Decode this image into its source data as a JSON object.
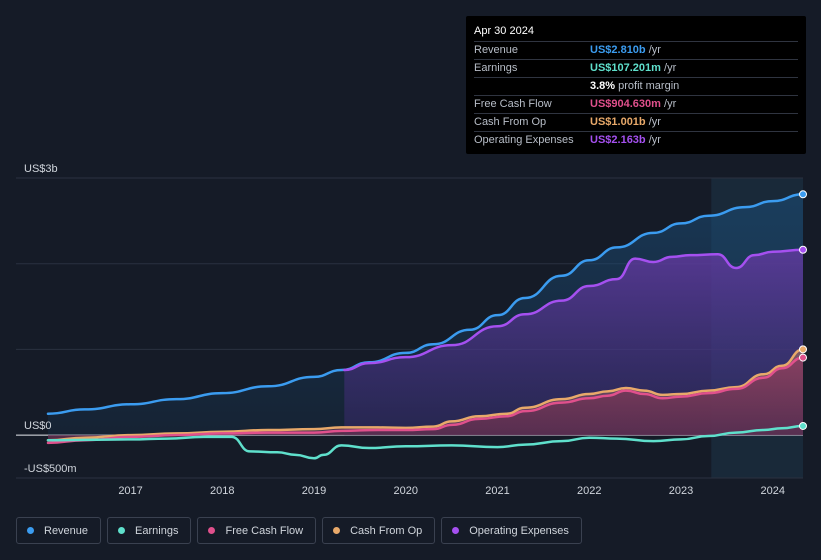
{
  "tooltip": {
    "date": "Apr 30 2024",
    "rows": [
      {
        "label": "Revenue",
        "value": "US$2.810b",
        "unit": "/yr",
        "color": "#3b9cf0"
      },
      {
        "label": "Earnings",
        "value": "US$107.201m",
        "unit": "/yr",
        "color": "#5fe0cc"
      },
      {
        "label": "",
        "value": "3.8%",
        "unit": "profit margin",
        "color": "#ffffff"
      },
      {
        "label": "Free Cash Flow",
        "value": "US$904.630m",
        "unit": "/yr",
        "color": "#e0508c"
      },
      {
        "label": "Cash From Op",
        "value": "US$1.001b",
        "unit": "/yr",
        "color": "#e8a96a"
      },
      {
        "label": "Operating Expenses",
        "value": "US$2.163b",
        "unit": "/yr",
        "color": "#a550f0"
      }
    ]
  },
  "legend": [
    {
      "label": "Revenue",
      "color": "#3b9cf0"
    },
    {
      "label": "Earnings",
      "color": "#5fe0cc"
    },
    {
      "label": "Free Cash Flow",
      "color": "#e0508c"
    },
    {
      "label": "Cash From Op",
      "color": "#e8a96a"
    },
    {
      "label": "Operating Expenses",
      "color": "#a550f0"
    }
  ],
  "chart_data": {
    "type": "area",
    "title": "",
    "ylabel": "",
    "xlabel": "",
    "ylim": [
      -500,
      3000
    ],
    "y_tick_labels": [
      {
        "value": 3000,
        "label": "US$3b"
      },
      {
        "value": 0,
        "label": "US$0"
      },
      {
        "value": -500,
        "label": "-US$500m"
      }
    ],
    "x_ticks": [
      {
        "value": 2017,
        "label": "2017"
      },
      {
        "value": 2018,
        "label": "2018"
      },
      {
        "value": 2019,
        "label": "2019"
      },
      {
        "value": 2020,
        "label": "2020"
      },
      {
        "value": 2021,
        "label": "2021"
      },
      {
        "value": 2022,
        "label": "2022"
      },
      {
        "value": 2023,
        "label": "2023"
      },
      {
        "value": 2024,
        "label": "2024"
      }
    ],
    "x_range": [
      2016.1,
      2024.33
    ],
    "highlight_start": 2023.33,
    "series": [
      {
        "name": "Revenue",
        "color": "#3b9cf0",
        "fill": true,
        "points": [
          [
            2016.1,
            250
          ],
          [
            2016.5,
            300
          ],
          [
            2017,
            360
          ],
          [
            2017.5,
            420
          ],
          [
            2018,
            490
          ],
          [
            2018.5,
            570
          ],
          [
            2019,
            680
          ],
          [
            2019.3,
            760
          ],
          [
            2019.6,
            850
          ],
          [
            2020,
            960
          ],
          [
            2020.3,
            1060
          ],
          [
            2020.7,
            1230
          ],
          [
            2021,
            1400
          ],
          [
            2021.3,
            1600
          ],
          [
            2021.7,
            1860
          ],
          [
            2022,
            2040
          ],
          [
            2022.3,
            2190
          ],
          [
            2022.7,
            2360
          ],
          [
            2023,
            2470
          ],
          [
            2023.3,
            2560
          ],
          [
            2023.7,
            2660
          ],
          [
            2024,
            2730
          ],
          [
            2024.33,
            2810
          ]
        ]
      },
      {
        "name": "Operating Expenses",
        "color": "#a550f0",
        "fill": true,
        "points": [
          [
            2019.33,
            760
          ],
          [
            2019.6,
            840
          ],
          [
            2020,
            910
          ],
          [
            2020.5,
            1050
          ],
          [
            2021,
            1270
          ],
          [
            2021.3,
            1410
          ],
          [
            2021.7,
            1570
          ],
          [
            2022,
            1740
          ],
          [
            2022.3,
            1820
          ],
          [
            2022.5,
            2060
          ],
          [
            2022.7,
            2020
          ],
          [
            2022.9,
            2080
          ],
          [
            2023.1,
            2100
          ],
          [
            2023.4,
            2110
          ],
          [
            2023.6,
            1950
          ],
          [
            2023.8,
            2100
          ],
          [
            2024,
            2140
          ],
          [
            2024.33,
            2163
          ]
        ]
      },
      {
        "name": "Cash From Op",
        "color": "#e8a96a",
        "fill": true,
        "points": [
          [
            2016.1,
            -60
          ],
          [
            2016.5,
            -30
          ],
          [
            2017,
            0
          ],
          [
            2017.5,
            20
          ],
          [
            2018,
            40
          ],
          [
            2018.5,
            60
          ],
          [
            2019,
            70
          ],
          [
            2019.3,
            90
          ],
          [
            2019.7,
            90
          ],
          [
            2020,
            85
          ],
          [
            2020.3,
            100
          ],
          [
            2020.5,
            160
          ],
          [
            2020.8,
            220
          ],
          [
            2021.1,
            250
          ],
          [
            2021.3,
            320
          ],
          [
            2021.7,
            420
          ],
          [
            2022,
            480
          ],
          [
            2022.2,
            510
          ],
          [
            2022.4,
            550
          ],
          [
            2022.6,
            520
          ],
          [
            2022.8,
            470
          ],
          [
            2023,
            480
          ],
          [
            2023.3,
            520
          ],
          [
            2023.6,
            560
          ],
          [
            2023.9,
            710
          ],
          [
            2024.1,
            810
          ],
          [
            2024.33,
            1001
          ]
        ]
      },
      {
        "name": "Free Cash Flow",
        "color": "#e0508c",
        "fill": true,
        "points": [
          [
            2016.1,
            -90
          ],
          [
            2016.5,
            -60
          ],
          [
            2017,
            -20
          ],
          [
            2017.5,
            0
          ],
          [
            2018,
            20
          ],
          [
            2018.5,
            30
          ],
          [
            2019,
            30
          ],
          [
            2019.3,
            50
          ],
          [
            2019.7,
            60
          ],
          [
            2020,
            60
          ],
          [
            2020.3,
            70
          ],
          [
            2020.5,
            120
          ],
          [
            2020.8,
            190
          ],
          [
            2021.1,
            220
          ],
          [
            2021.3,
            280
          ],
          [
            2021.7,
            380
          ],
          [
            2022,
            430
          ],
          [
            2022.2,
            460
          ],
          [
            2022.4,
            520
          ],
          [
            2022.6,
            480
          ],
          [
            2022.8,
            430
          ],
          [
            2023,
            450
          ],
          [
            2023.3,
            490
          ],
          [
            2023.6,
            540
          ],
          [
            2023.9,
            670
          ],
          [
            2024.1,
            780
          ],
          [
            2024.33,
            905
          ]
        ]
      },
      {
        "name": "Earnings",
        "color": "#5fe0cc",
        "fill": false,
        "points": [
          [
            2016.1,
            -60
          ],
          [
            2016.5,
            -55
          ],
          [
            2017,
            -50
          ],
          [
            2017.4,
            -40
          ],
          [
            2017.8,
            -20
          ],
          [
            2018.1,
            -20
          ],
          [
            2018.3,
            -190
          ],
          [
            2018.6,
            -200
          ],
          [
            2018.8,
            -230
          ],
          [
            2019.0,
            -270
          ],
          [
            2019.1,
            -230
          ],
          [
            2019.3,
            -120
          ],
          [
            2019.6,
            -150
          ],
          [
            2020,
            -130
          ],
          [
            2020.5,
            -120
          ],
          [
            2021,
            -140
          ],
          [
            2021.3,
            -110
          ],
          [
            2021.7,
            -70
          ],
          [
            2022,
            -30
          ],
          [
            2022.3,
            -40
          ],
          [
            2022.7,
            -70
          ],
          [
            2023,
            -50
          ],
          [
            2023.3,
            -10
          ],
          [
            2023.6,
            30
          ],
          [
            2023.9,
            60
          ],
          [
            2024.1,
            80
          ],
          [
            2024.33,
            107
          ]
        ]
      }
    ]
  }
}
